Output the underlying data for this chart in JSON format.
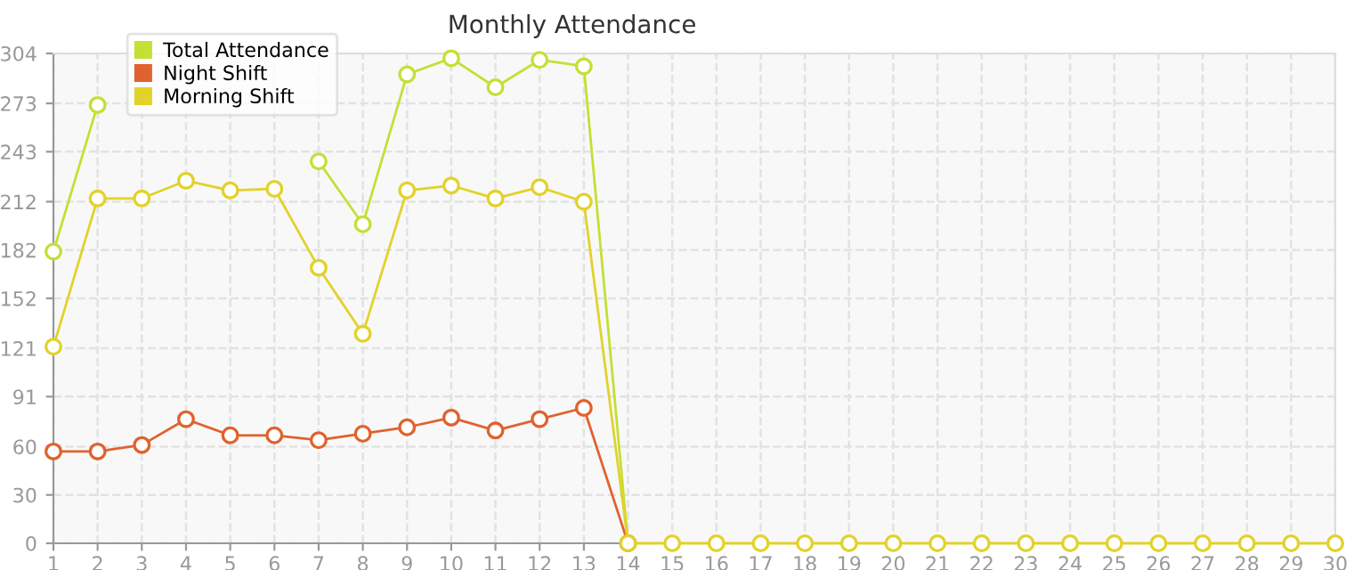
{
  "chart_data": {
    "type": "line",
    "title": "Monthly Attendance",
    "x": [
      1,
      2,
      3,
      4,
      5,
      6,
      7,
      8,
      9,
      10,
      11,
      12,
      13,
      14,
      15,
      16,
      17,
      18,
      19,
      20,
      21,
      22,
      23,
      24,
      25,
      26,
      27,
      28,
      29,
      30
    ],
    "series": [
      {
        "name": "Total Attendance",
        "color": "#c5df34",
        "values": [
          181,
          272,
          null,
          null,
          null,
          null,
          237,
          198,
          291,
          301,
          283,
          300,
          296,
          0,
          null,
          null,
          null,
          null,
          null,
          null,
          null,
          null,
          null,
          null,
          null,
          null,
          null,
          null,
          null,
          null
        ]
      },
      {
        "name": "Night Shift",
        "color": "#e0622e",
        "values": [
          57,
          57,
          61,
          77,
          67,
          67,
          64,
          68,
          72,
          78,
          70,
          77,
          84,
          0,
          null,
          null,
          null,
          null,
          null,
          null,
          null,
          null,
          null,
          null,
          null,
          null,
          null,
          null,
          null,
          null
        ]
      },
      {
        "name": "Morning Shift",
        "color": "#e2d22a",
        "values": [
          122,
          214,
          214,
          225,
          219,
          220,
          171,
          130,
          219,
          222,
          214,
          221,
          212,
          0,
          0,
          0,
          0,
          0,
          0,
          0,
          0,
          0,
          0,
          0,
          0,
          0,
          0,
          0,
          0,
          0
        ]
      }
    ],
    "xlim": [
      1,
      30
    ],
    "xticks": [
      1,
      2,
      3,
      4,
      5,
      6,
      7,
      8,
      9,
      10,
      11,
      12,
      13,
      14,
      15,
      16,
      17,
      18,
      19,
      20,
      21,
      22,
      23,
      24,
      25,
      26,
      27,
      28,
      29,
      30
    ],
    "ylim": [
      0,
      304
    ],
    "yticks": [
      0,
      30,
      60,
      91,
      121,
      152,
      182,
      212,
      243,
      273,
      304
    ],
    "grid": true,
    "legend": "top left",
    "marker": "circle",
    "line_style": "solid"
  }
}
